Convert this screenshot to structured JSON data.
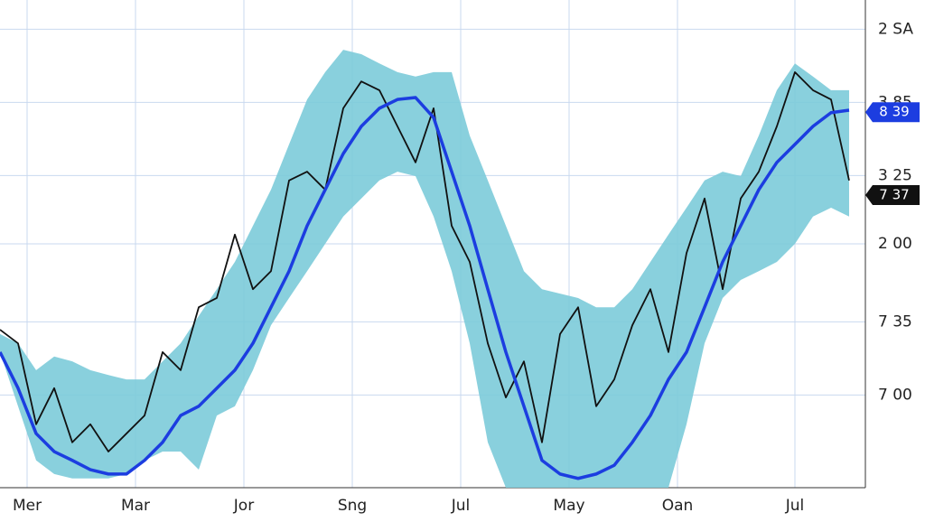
{
  "chart_data": {
    "type": "line",
    "x": [
      0,
      2,
      4,
      6,
      8,
      10,
      12,
      14,
      16,
      18,
      20,
      22,
      24,
      26,
      28,
      30,
      32,
      34,
      36,
      38,
      40,
      42,
      44,
      46,
      48,
      50,
      52,
      54,
      56,
      58,
      60,
      62,
      64,
      66,
      68,
      70,
      72,
      74,
      76,
      78,
      80,
      82,
      84,
      86,
      88,
      90,
      92,
      94
    ],
    "series": [
      {
        "color": "#111111",
        "values": [
          32.4,
          29.6,
          13,
          20.4,
          9.3,
          13,
          7.4,
          11.1,
          14.8,
          27.8,
          24.1,
          37,
          38.9,
          51.9,
          40.7,
          44.4,
          63,
          64.8,
          61.1,
          77.8,
          83.3,
          81.5,
          74.1,
          66.7,
          77.8,
          53.7,
          46.3,
          29.6,
          18.5,
          25.9,
          9.3,
          31.5,
          37,
          16.7,
          22.2,
          33.3,
          40.7,
          27.8,
          48.1,
          59.3,
          40.7,
          59.3,
          64.8,
          74.1,
          85.2,
          81.5,
          79.6,
          63
        ]
      },
      {
        "color": "#1c3de0",
        "values": [
          27.8,
          20.4,
          11.1,
          7.4,
          5.6,
          3.7,
          2.8,
          2.8,
          5.6,
          9.3,
          14.8,
          16.7,
          20.4,
          24.1,
          29.6,
          37,
          44.4,
          53.7,
          61.1,
          68.5,
          74.1,
          77.8,
          79.6,
          80,
          75.9,
          64.8,
          53.7,
          40.7,
          27.8,
          16.7,
          5.6,
          2.8,
          1.9,
          2.8,
          4.6,
          9.3,
          14.8,
          22.2,
          27.8,
          37,
          46.3,
          53.7,
          61.1,
          66.7,
          70.4,
          74.1,
          76.9,
          77.4
        ]
      }
    ],
    "band": {
      "color": "#7ccbd9",
      "upper": [
        31.5,
        29.6,
        24.1,
        26.9,
        25.9,
        24.1,
        23.1,
        22.2,
        22.2,
        25.9,
        29.6,
        35.2,
        40.7,
        46.3,
        53.7,
        61.1,
        70.4,
        79.6,
        85.2,
        89.8,
        88.9,
        87,
        85.2,
        84.3,
        85.2,
        85.2,
        72.2,
        63,
        53.7,
        44.4,
        40.7,
        39.8,
        38.9,
        37,
        37,
        40.7,
        46.3,
        51.9,
        57.4,
        63,
        64.8,
        63.9,
        72.2,
        81.5,
        87,
        84.3,
        81.5,
        81.5
      ],
      "lower": [
        27.8,
        16.7,
        5.6,
        2.8,
        1.9,
        1.9,
        1.9,
        2.8,
        5.6,
        7.4,
        7.4,
        3.7,
        14.8,
        16.7,
        24.1,
        33.3,
        38.9,
        44.4,
        50,
        55.6,
        59.3,
        63,
        64.8,
        63.9,
        55.6,
        44.4,
        29.6,
        9.3,
        0,
        0,
        0,
        0,
        0,
        0,
        0,
        0,
        0,
        0,
        13,
        29.6,
        38.9,
        42.6,
        44.4,
        46.3,
        50,
        55.6,
        57.4,
        55.6
      ]
    },
    "xlim": [
      0,
      95
    ],
    "ylim": [
      0,
      100
    ],
    "xticks": [
      {
        "value": 3,
        "label": "Mer"
      },
      {
        "value": 15,
        "label": "Mar"
      },
      {
        "value": 27,
        "label": "Jor"
      },
      {
        "value": 39,
        "label": "Sng"
      },
      {
        "value": 51,
        "label": "Jul"
      },
      {
        "value": 63,
        "label": "May"
      },
      {
        "value": 75,
        "label": "Oan"
      },
      {
        "value": 88,
        "label": "Jul"
      }
    ],
    "yticks": [
      {
        "value": 94,
        "label": "2 SA"
      },
      {
        "value": 79,
        "label": "3 85"
      },
      {
        "value": 64,
        "label": "3 25"
      },
      {
        "value": 50,
        "label": "2 00"
      },
      {
        "value": 34,
        "label": "7 35"
      },
      {
        "value": 19,
        "label": "7 00"
      }
    ],
    "price_tags": [
      {
        "value": 77,
        "label": "8 39",
        "color": "#1c3de0"
      },
      {
        "value": 60,
        "label": "7 37",
        "color": "#111111"
      }
    ],
    "grid": true
  }
}
